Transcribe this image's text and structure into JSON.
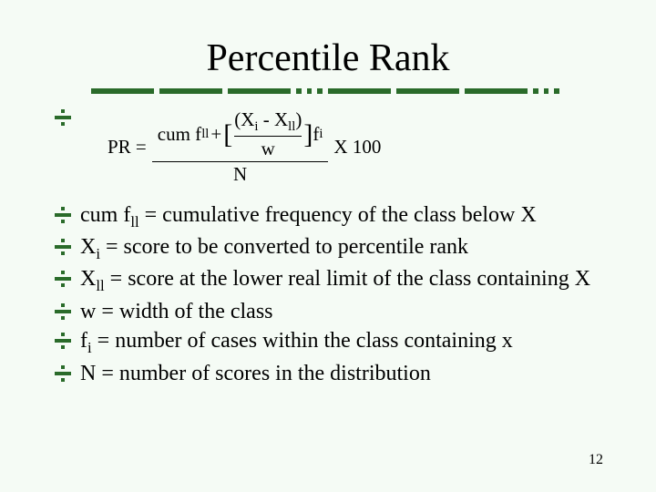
{
  "title": "Percentile Rank",
  "divider": {
    "color": "#2a6b2a",
    "pattern": [
      "long",
      "long",
      "long",
      "short",
      "short",
      "short",
      "long",
      "long",
      "long",
      "short",
      "short",
      "short"
    ]
  },
  "formula": {
    "lhs": "PR =",
    "numerator_prefix": "cum f",
    "numerator_prefix_sub": "ll",
    "plus": "+",
    "bracket_num_left": "X",
    "bracket_num_left_sub": "i",
    "bracket_minus": " - ",
    "bracket_num_right": "X",
    "bracket_num_right_sub": "ll",
    "bracket_den": "w",
    "after_bracket": "f",
    "after_bracket_sub": "i",
    "denominator": "N",
    "tail": "X 100"
  },
  "defs": [
    {
      "sym": "cum f",
      "sub": "ll",
      "text": " = cumulative frequency of the class below X"
    },
    {
      "sym": "X",
      "sub": "i",
      "text": " = score to be converted to percentile rank"
    },
    {
      "sym": "X",
      "sub": "ll",
      "text": " = score at the lower real limit of the class containing X"
    },
    {
      "sym": "w",
      "sub": "",
      "text": " = width of the class"
    },
    {
      "sym": "f",
      "sub": "i",
      "text": " = number of cases within the class containing x"
    },
    {
      "sym": "N",
      "sub": "",
      "text": " = number of scores in the distribution"
    }
  ],
  "page_number": "12",
  "colors": {
    "background": "#f5fbf5",
    "accent": "#2a6b2a",
    "text": "#000000"
  }
}
